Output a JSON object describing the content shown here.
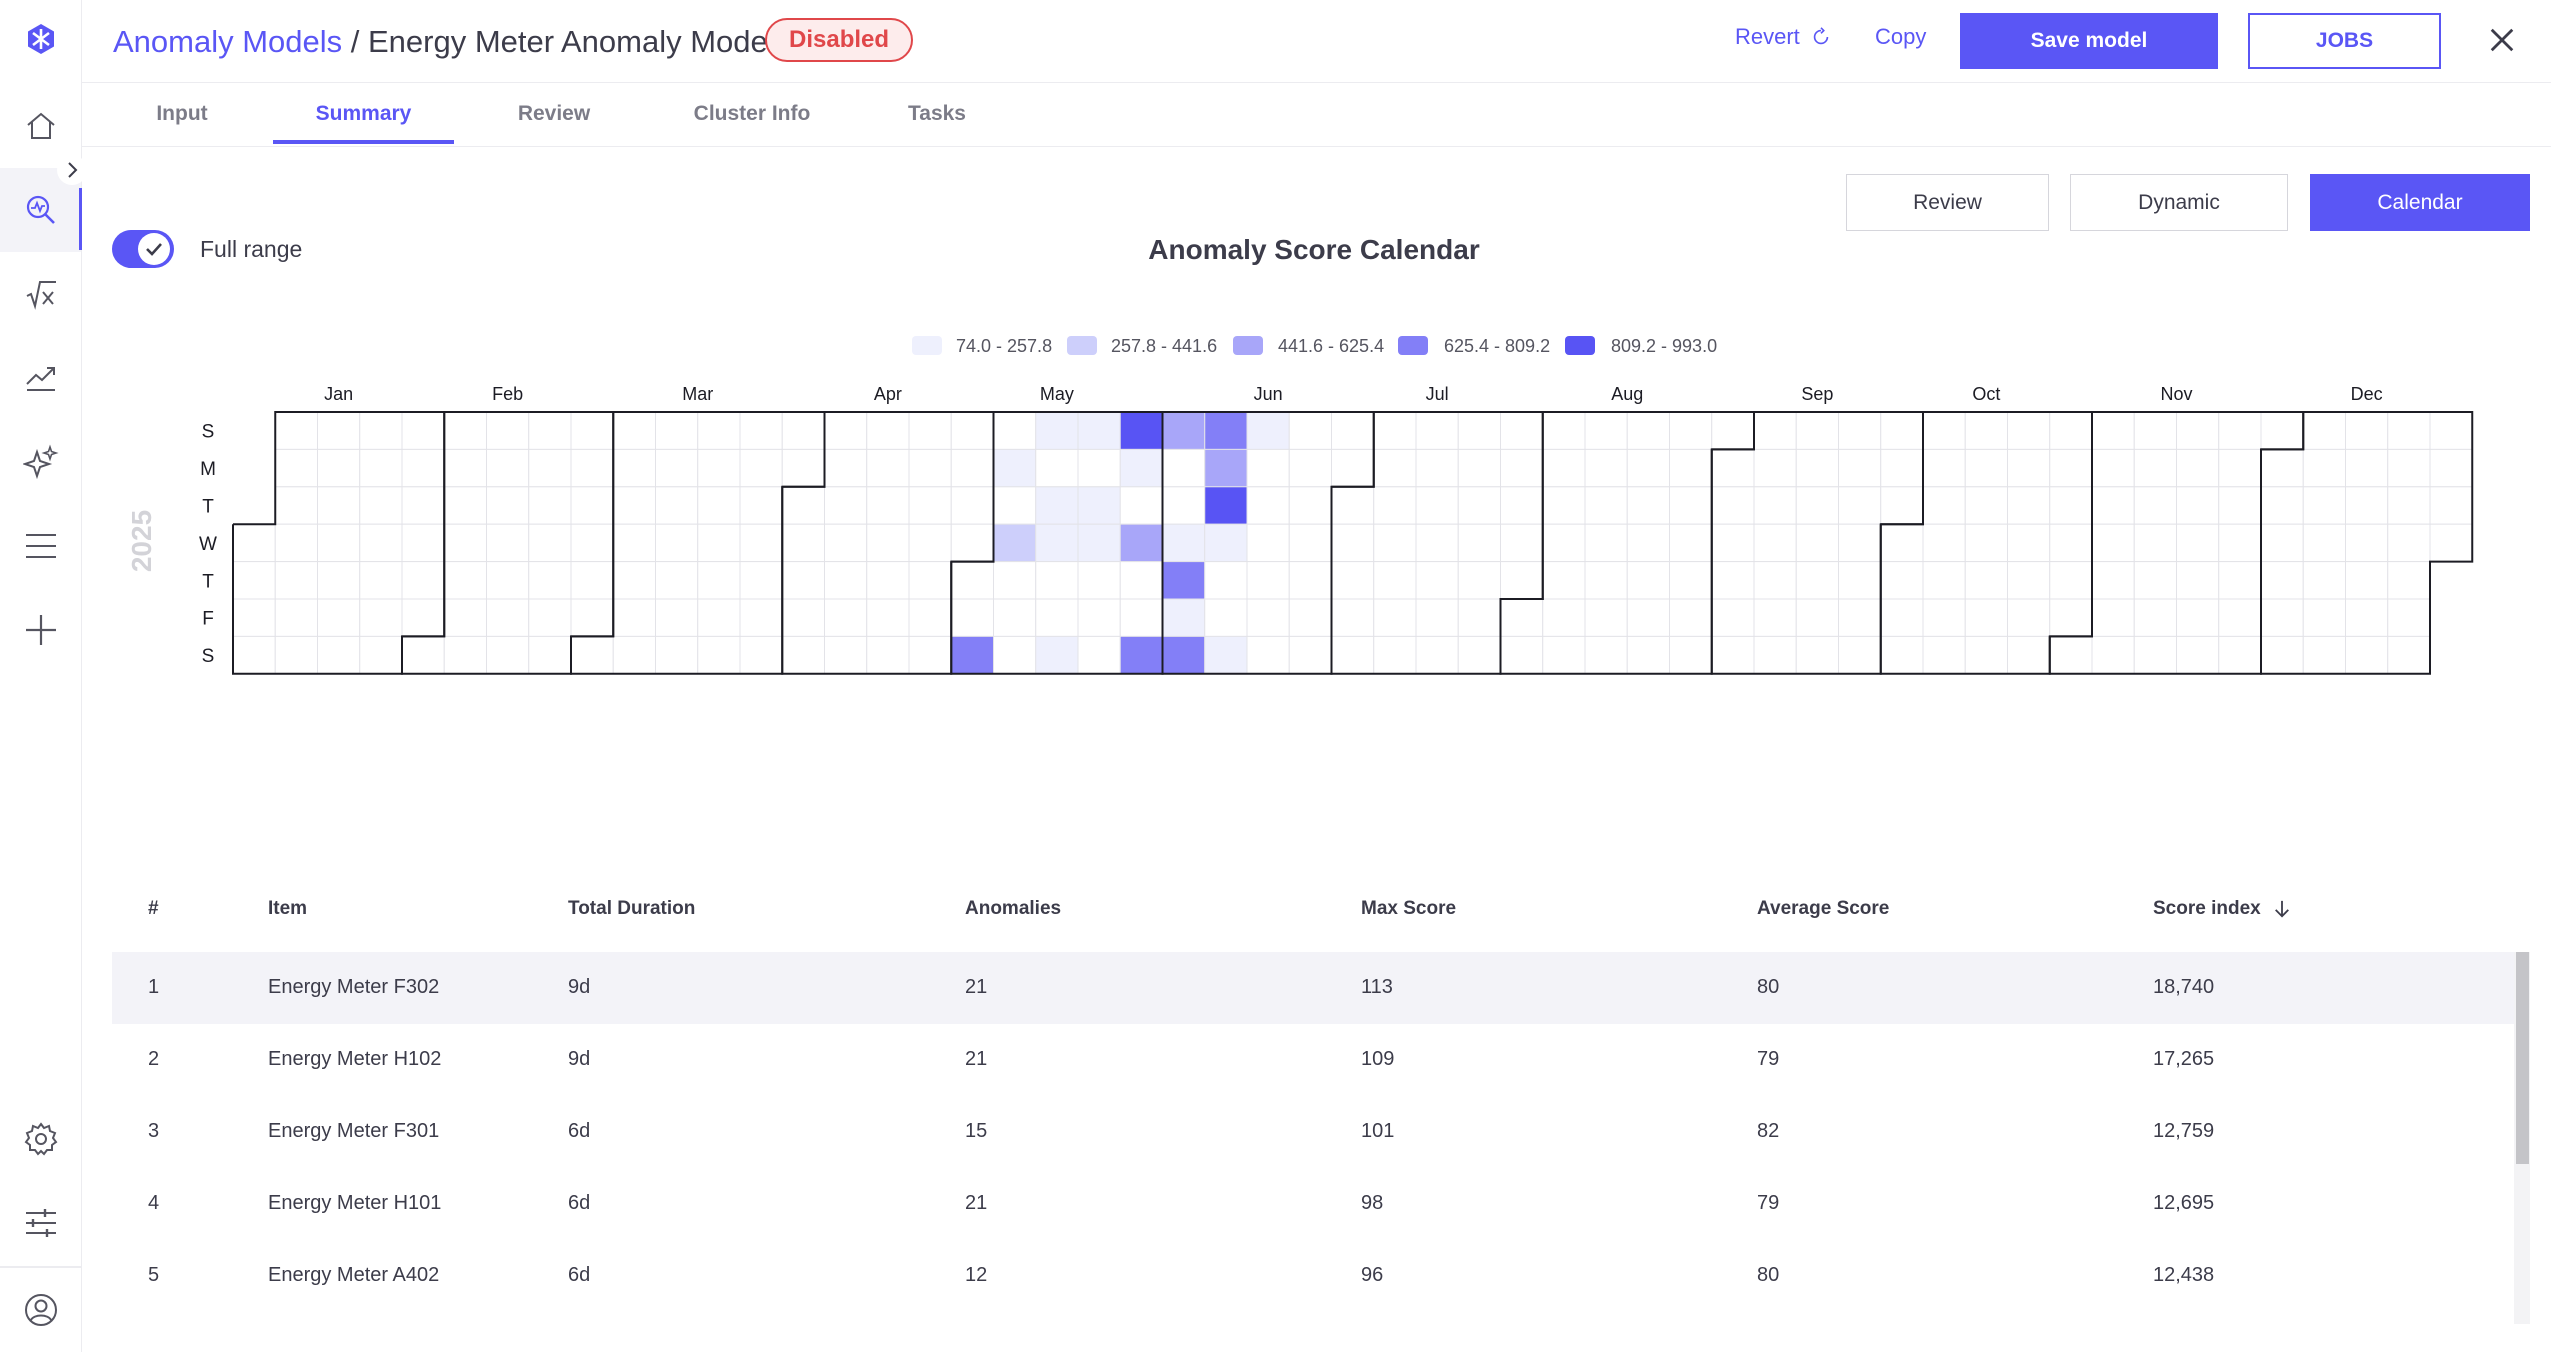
{
  "colors": {
    "accent": "#5a56f5",
    "status_disabled": "#e0474a",
    "scale": [
      "#eef0fd",
      "#cdcffb",
      "#a8a6f9",
      "#837ff7",
      "#5854f4"
    ]
  },
  "sidebar": {
    "logo": "logo-icon",
    "items": [
      {
        "icon": "home-icon"
      },
      {
        "icon": "anomaly-search-icon",
        "active": true
      },
      {
        "icon": "formula-icon"
      },
      {
        "icon": "trend-chart-icon"
      },
      {
        "icon": "sparkle-icon"
      },
      {
        "icon": "menu-lines-icon"
      },
      {
        "icon": "plus-icon"
      }
    ],
    "bottom_items": [
      {
        "icon": "gear-icon"
      },
      {
        "icon": "sliders-icon"
      },
      {
        "icon": "user-icon"
      }
    ]
  },
  "header": {
    "breadcrumb_parent": "Anomaly Models",
    "breadcrumb_sep": " / ",
    "title": "Energy Meter Anomaly Model",
    "status": "Disabled",
    "revert_label": "Revert",
    "copy_label": "Copy",
    "save_label": "Save model",
    "jobs_label": "JOBS"
  },
  "tabs": [
    {
      "label": "Input"
    },
    {
      "label": "Summary",
      "active": true
    },
    {
      "label": "Review"
    },
    {
      "label": "Cluster Info"
    },
    {
      "label": "Tasks"
    }
  ],
  "view_buttons": {
    "review": "Review",
    "dynamic": "Dynamic",
    "calendar": "Calendar",
    "selected": "Calendar"
  },
  "full_range": {
    "label": "Full range",
    "checked": true
  },
  "chart_data": {
    "type": "heatmap",
    "title": "Anomaly Score Calendar",
    "year": "2025",
    "months": [
      "Jan",
      "Feb",
      "Mar",
      "Apr",
      "May",
      "Jun",
      "Jul",
      "Aug",
      "Sep",
      "Oct",
      "Nov",
      "Dec"
    ],
    "weekday_labels": [
      "S",
      "M",
      "T",
      "W",
      "T",
      "F",
      "S"
    ],
    "legend": [
      "74.0 - 257.8",
      "257.8 - 441.6",
      "441.6 - 625.4",
      "625.4 - 809.2",
      "809.2 - 993.0"
    ],
    "cells": [
      {
        "date": "2025-05-03",
        "bin": 3
      },
      {
        "date": "2025-05-05",
        "bin": 0
      },
      {
        "date": "2025-05-07",
        "bin": 1
      },
      {
        "date": "2025-05-11",
        "bin": 0
      },
      {
        "date": "2025-05-13",
        "bin": 0
      },
      {
        "date": "2025-05-14",
        "bin": 0
      },
      {
        "date": "2025-05-17",
        "bin": 0
      },
      {
        "date": "2025-05-18",
        "bin": 0
      },
      {
        "date": "2025-05-20",
        "bin": 0
      },
      {
        "date": "2025-05-21",
        "bin": 0
      },
      {
        "date": "2025-05-25",
        "bin": 4
      },
      {
        "date": "2025-05-26",
        "bin": 0
      },
      {
        "date": "2025-05-28",
        "bin": 2
      },
      {
        "date": "2025-05-31",
        "bin": 3
      },
      {
        "date": "2025-06-01",
        "bin": 2
      },
      {
        "date": "2025-06-04",
        "bin": 0
      },
      {
        "date": "2025-06-05",
        "bin": 3
      },
      {
        "date": "2025-06-06",
        "bin": 0
      },
      {
        "date": "2025-06-07",
        "bin": 3
      },
      {
        "date": "2025-06-08",
        "bin": 3
      },
      {
        "date": "2025-06-09",
        "bin": 2
      },
      {
        "date": "2025-06-10",
        "bin": 4
      },
      {
        "date": "2025-06-11",
        "bin": 0
      },
      {
        "date": "2025-06-14",
        "bin": 0
      },
      {
        "date": "2025-06-15",
        "bin": 0
      }
    ]
  },
  "table": {
    "columns": [
      "#",
      "Item",
      "Total Duration",
      "Anomalies",
      "Max Score",
      "Average Score",
      "Score index"
    ],
    "sort_column": "Score index",
    "rows": [
      [
        "1",
        "Energy Meter F302",
        "9d",
        "21",
        "113",
        "80",
        "18,740"
      ],
      [
        "2",
        "Energy Meter H102",
        "9d",
        "21",
        "109",
        "79",
        "17,265"
      ],
      [
        "3",
        "Energy Meter F301",
        "6d",
        "15",
        "101",
        "82",
        "12,759"
      ],
      [
        "4",
        "Energy Meter H101",
        "6d",
        "21",
        "98",
        "79",
        "12,695"
      ],
      [
        "5",
        "Energy Meter A402",
        "6d",
        "12",
        "96",
        "80",
        "12,438"
      ]
    ]
  }
}
